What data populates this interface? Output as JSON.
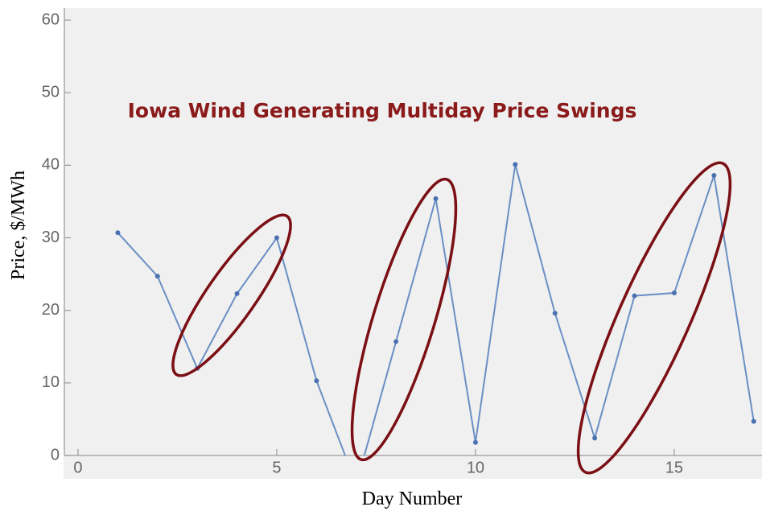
{
  "chart_data": {
    "type": "line",
    "annotation": "Iowa Wind Generating Multiday Price Swings",
    "x_label": "Day Number",
    "y_label": "Price, $/MWh",
    "series": [
      {
        "name": null,
        "color": "#6a8fc4",
        "x": [
          1,
          2,
          3,
          4,
          5,
          6,
          7,
          8,
          9,
          10,
          11,
          12,
          13,
          14,
          15,
          16,
          17
        ],
        "values": [
          30.7,
          24.7,
          12.0,
          22.3,
          30.0,
          10.3,
          -4,
          15.7,
          35.4,
          1.8,
          40.1,
          19.6,
          2.4,
          22.0,
          22.4,
          38.6,
          4.7
        ]
      }
    ],
    "xlim": [
      -0.35,
      17.2
    ],
    "xticks": [
      0,
      5,
      10,
      15
    ],
    "ylim": [
      0,
      60
    ],
    "yticks": [
      0,
      10,
      20,
      30,
      40,
      50,
      60
    ]
  }
}
